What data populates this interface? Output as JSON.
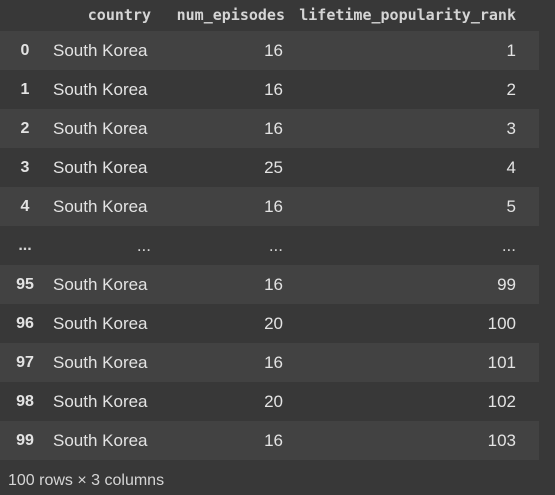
{
  "table": {
    "columns": [
      "country",
      "num_episodes",
      "lifetime_popularity_rank"
    ],
    "rows": [
      {
        "index": "0",
        "country": "South Korea",
        "num_episodes": "16",
        "lifetime_popularity_rank": "1"
      },
      {
        "index": "1",
        "country": "South Korea",
        "num_episodes": "16",
        "lifetime_popularity_rank": "2"
      },
      {
        "index": "2",
        "country": "South Korea",
        "num_episodes": "16",
        "lifetime_popularity_rank": "3"
      },
      {
        "index": "3",
        "country": "South Korea",
        "num_episodes": "25",
        "lifetime_popularity_rank": "4"
      },
      {
        "index": "4",
        "country": "South Korea",
        "num_episodes": "16",
        "lifetime_popularity_rank": "5"
      },
      {
        "index": "...",
        "country": "...",
        "num_episodes": "...",
        "lifetime_popularity_rank": "..."
      },
      {
        "index": "95",
        "country": "South Korea",
        "num_episodes": "16",
        "lifetime_popularity_rank": "99"
      },
      {
        "index": "96",
        "country": "South Korea",
        "num_episodes": "20",
        "lifetime_popularity_rank": "100"
      },
      {
        "index": "97",
        "country": "South Korea",
        "num_episodes": "16",
        "lifetime_popularity_rank": "101"
      },
      {
        "index": "98",
        "country": "South Korea",
        "num_episodes": "20",
        "lifetime_popularity_rank": "102"
      },
      {
        "index": "99",
        "country": "South Korea",
        "num_episodes": "16",
        "lifetime_popularity_rank": "103"
      }
    ]
  },
  "footer": "100 rows × 3 columns",
  "colors": {
    "background": "#383838",
    "row_stripe": "#424242",
    "text": "#d5d5d5"
  }
}
